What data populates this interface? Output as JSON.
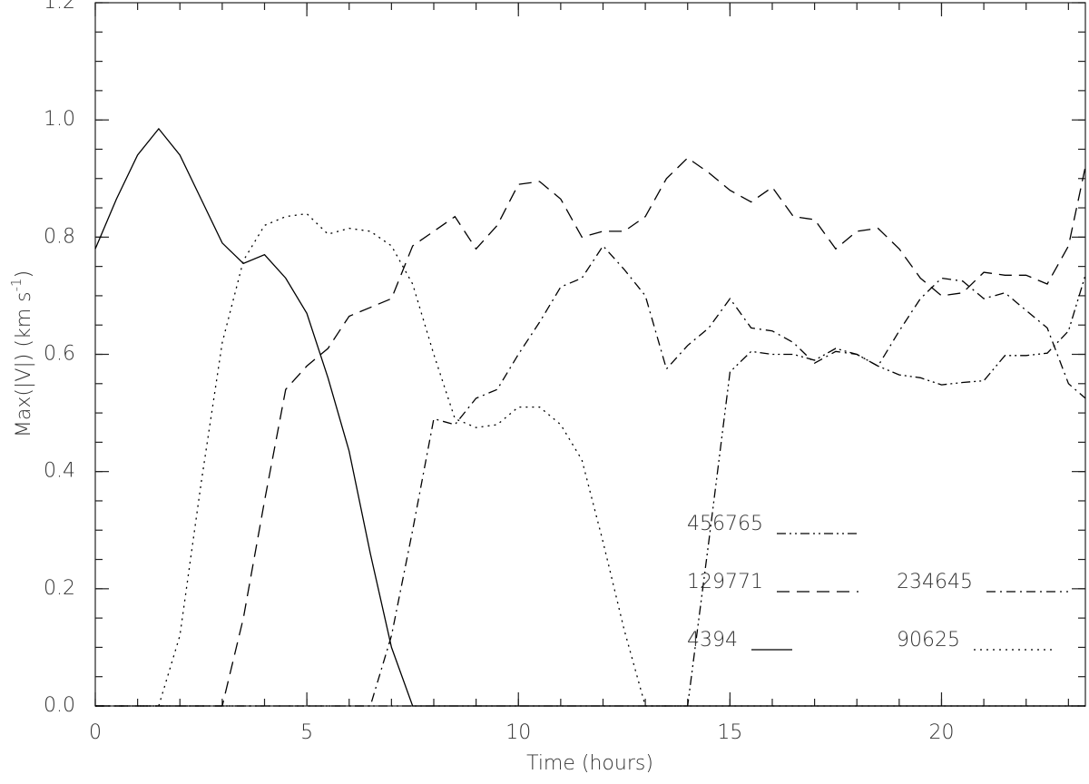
{
  "chart_data": {
    "type": "line",
    "xlabel": "Time (hours)",
    "ylabel": {
      "text": "Max(|V|) (km s",
      "sup": "-1",
      "close": ")"
    },
    "x": [
      0,
      0.5,
      1,
      1.5,
      2,
      2.5,
      3,
      3.5,
      4,
      4.5,
      5,
      5.5,
      6,
      6.5,
      7,
      7.5,
      8,
      8.5,
      9,
      9.5,
      10,
      10.5,
      11,
      11.5,
      12,
      12.5,
      13,
      13.5,
      14,
      14.5,
      15,
      15.5,
      16,
      16.5,
      17,
      17.5,
      18,
      18.5,
      19,
      19.5,
      20,
      20.5,
      21,
      21.5,
      22,
      22.5,
      23,
      23.4
    ],
    "series": [
      {
        "name": "4394",
        "color": "#000000",
        "dash": "solid",
        "values": [
          0.78,
          0.865,
          0.94,
          0.985,
          0.94,
          0.865,
          0.79,
          0.755,
          0.77,
          0.73,
          0.67,
          0.56,
          0.435,
          0.26,
          0.1,
          0,
          0,
          0,
          0,
          0,
          0,
          0,
          0,
          0,
          0,
          0,
          0,
          0,
          0,
          0,
          0,
          0,
          0,
          0,
          0,
          0,
          0,
          0,
          0,
          0,
          0,
          0,
          0,
          0,
          0,
          0,
          0,
          0
        ]
      },
      {
        "name": "90625",
        "color": "#000000",
        "dash": "dotted",
        "values": [
          0,
          0,
          0,
          0,
          0.12,
          0.38,
          0.62,
          0.76,
          0.82,
          0.835,
          0.84,
          0.805,
          0.815,
          0.81,
          0.785,
          0.72,
          0.6,
          0.49,
          0.475,
          0.48,
          0.51,
          0.51,
          0.48,
          0.42,
          0.28,
          0.13,
          0,
          0,
          0,
          0,
          0,
          0,
          0,
          0,
          0,
          0,
          0,
          0,
          0,
          0,
          0,
          0,
          0,
          0,
          0,
          0,
          0,
          0
        ]
      },
      {
        "name": "129771",
        "color": "#000000",
        "dash": "dashed",
        "values": [
          0,
          0,
          0,
          0,
          0,
          0,
          0,
          0.15,
          0.35,
          0.54,
          0.58,
          0.61,
          0.665,
          0.68,
          0.695,
          0.785,
          0.81,
          0.835,
          0.78,
          0.82,
          0.89,
          0.895,
          0.865,
          0.8,
          0.81,
          0.81,
          0.835,
          0.9,
          0.935,
          0.91,
          0.88,
          0.86,
          0.885,
          0.835,
          0.83,
          0.78,
          0.81,
          0.815,
          0.78,
          0.73,
          0.7,
          0.705,
          0.74,
          0.735,
          0.735,
          0.72,
          0.785,
          0.92
        ]
      },
      {
        "name": "234645",
        "color": "#000000",
        "dash": "dashdot",
        "values": [
          0,
          0,
          0,
          0,
          0,
          0,
          0,
          0,
          0,
          0,
          0,
          0,
          0,
          0,
          0.12,
          0.3,
          0.49,
          0.48,
          0.525,
          0.54,
          0.6,
          0.655,
          0.715,
          0.73,
          0.785,
          0.745,
          0.7,
          0.575,
          0.615,
          0.645,
          0.695,
          0.645,
          0.64,
          0.62,
          0.585,
          0.605,
          0.6,
          0.58,
          0.64,
          0.695,
          0.73,
          0.725,
          0.695,
          0.705,
          0.675,
          0.645,
          0.55,
          0.525
        ]
      },
      {
        "name": "456765",
        "color": "#000000",
        "dash": "dashdotdot",
        "values": [
          0,
          0,
          0,
          0,
          0,
          0,
          0,
          0,
          0,
          0,
          0,
          0,
          0,
          0,
          0,
          0,
          0,
          0,
          0,
          0,
          0,
          0,
          0,
          0,
          0,
          0,
          0,
          0,
          0,
          0.28,
          0.57,
          0.605,
          0.6,
          0.6,
          0.59,
          0.61,
          0.6,
          0.58,
          0.565,
          0.56,
          0.548,
          0.552,
          0.555,
          0.598,
          0.598,
          0.602,
          0.64,
          0.735
        ]
      }
    ],
    "xlim": [
      0,
      23.4
    ],
    "xticks": [
      0,
      5,
      10,
      15,
      20
    ],
    "ylim": [
      0,
      1.2
    ],
    "yticks": [
      {
        "value": 0,
        "label": "0.0"
      },
      {
        "value": 0.2,
        "label": "0.2"
      },
      {
        "value": 0.4,
        "label": "0.4"
      },
      {
        "value": 0.6,
        "label": "0.6"
      },
      {
        "value": 0.8,
        "label": "0.8"
      },
      {
        "value": 1,
        "label": "1.0"
      },
      {
        "value": 1.2,
        "label": "1.2"
      }
    ]
  }
}
